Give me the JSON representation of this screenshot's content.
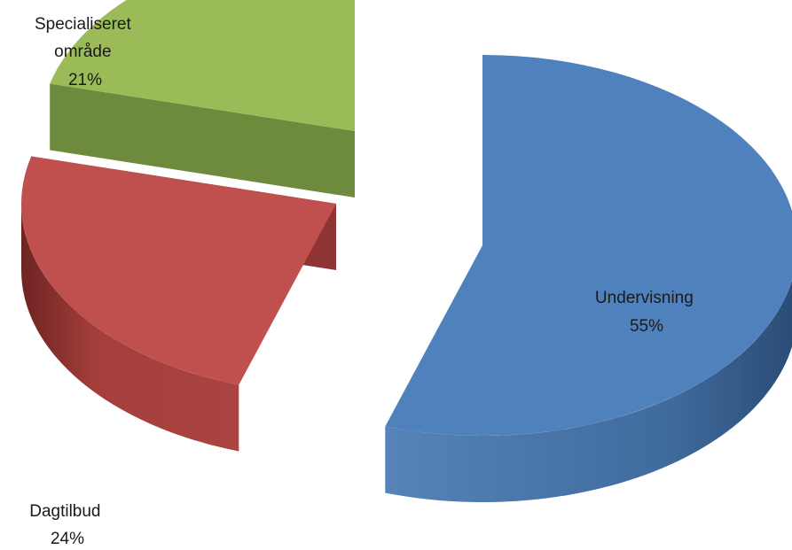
{
  "chart_data": {
    "type": "pie",
    "title": "",
    "style": "3d-exploded",
    "legend": "none",
    "slices": [
      {
        "label": "Undervisning",
        "value": 55,
        "percent_label": "55%",
        "color": "#4f81bd"
      },
      {
        "label": "Dagtilbud",
        "value": 24,
        "percent_label": "24%",
        "color": "#c0504d"
      },
      {
        "label": "Specialiseret område",
        "label_lines": [
          "Specialiseret",
          "område"
        ],
        "value": 21,
        "percent_label": "21%",
        "color": "#9bbb59"
      }
    ]
  }
}
